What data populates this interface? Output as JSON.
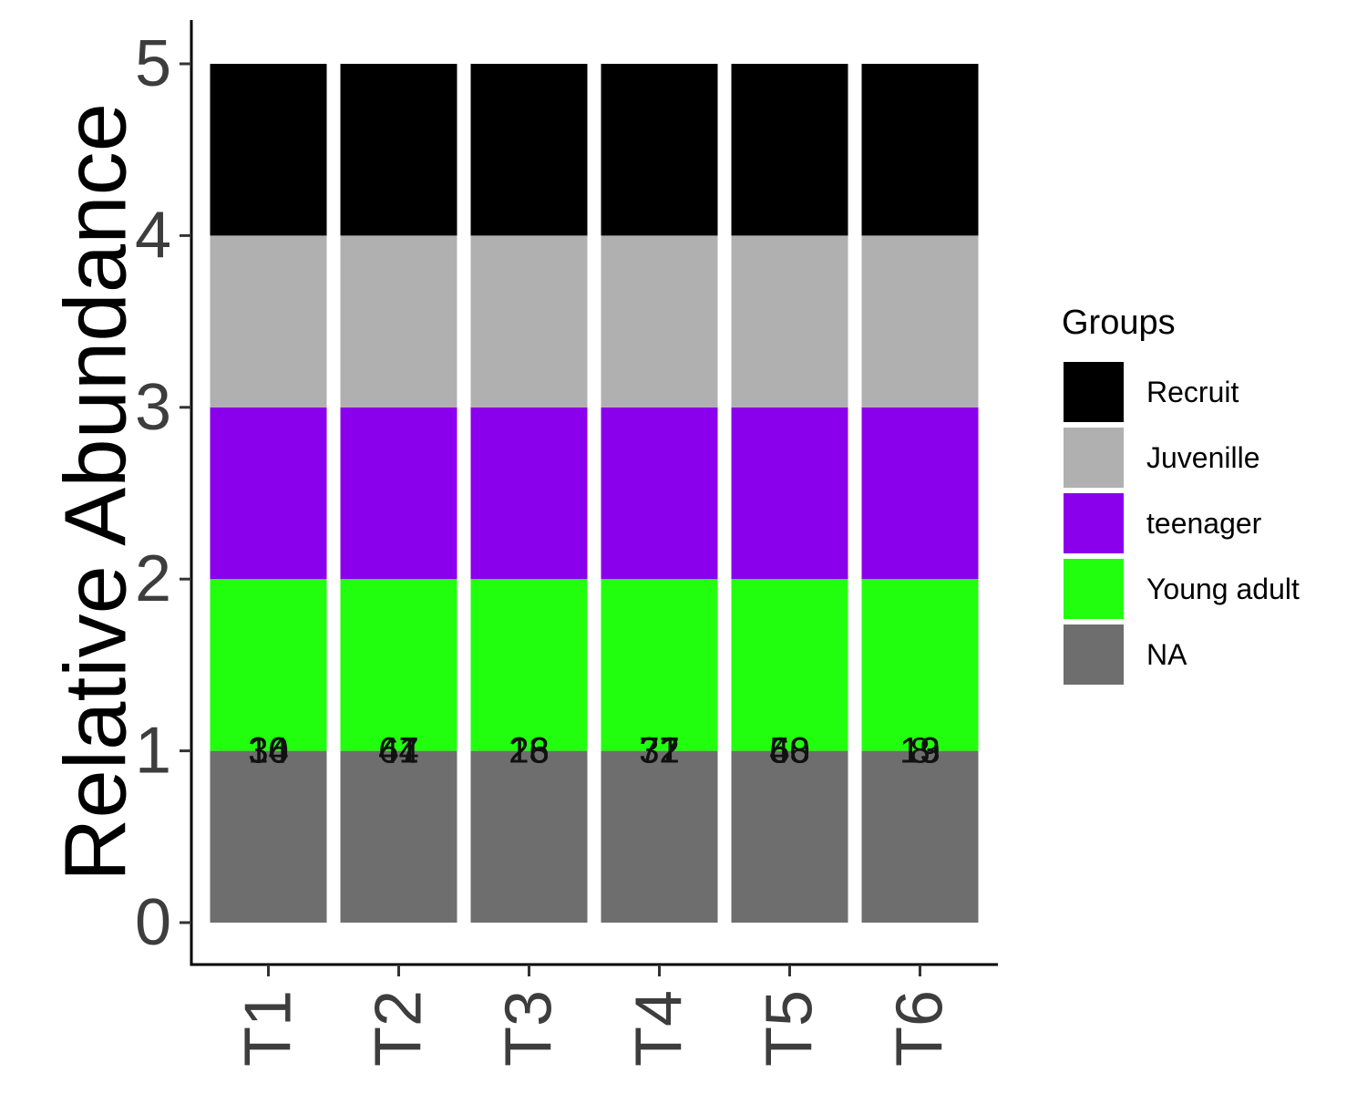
{
  "chart_data": {
    "type": "bar",
    "stacked": true,
    "categories": [
      "T1",
      "T2",
      "T3",
      "T4",
      "T5",
      "T6"
    ],
    "ylabel": "Relative Abundance",
    "xlabel": "",
    "ylim": [
      0,
      5
    ],
    "yticks": [
      "0",
      "1",
      "2",
      "3",
      "4",
      "5"
    ],
    "grid": false,
    "legend": {
      "title": "Groups",
      "position": "right"
    },
    "series": [
      {
        "name": "NA",
        "color": "#6e6e6e",
        "values": [
          1,
          1,
          1,
          1,
          1,
          1
        ]
      },
      {
        "name": "Young adult",
        "color": "#22ff0e",
        "values": [
          1,
          1,
          1,
          1,
          1,
          1
        ]
      },
      {
        "name": "teenager",
        "color": "#8b00ec",
        "values": [
          1,
          1,
          1,
          1,
          1,
          1
        ]
      },
      {
        "name": "Juvenille",
        "color": "#b0b0b0",
        "values": [
          1,
          1,
          1,
          1,
          1,
          1
        ]
      },
      {
        "name": "Recruit",
        "color": "#000000",
        "values": [
          1,
          1,
          1,
          1,
          1,
          1
        ]
      }
    ],
    "legend_order": [
      "Recruit",
      "Juvenille",
      "teenager",
      "Young adult",
      "NA"
    ],
    "bar_labels": [
      {
        "category": "T1",
        "y": 1,
        "text": [
          "34",
          "36",
          "10"
        ]
      },
      {
        "category": "T2",
        "y": 1,
        "text": [
          "41",
          "47",
          "64"
        ]
      },
      {
        "category": "T3",
        "y": 1,
        "text": [
          "26",
          "28",
          "13"
        ]
      },
      {
        "category": "T4",
        "y": 1,
        "text": [
          "37",
          "32",
          "71"
        ]
      },
      {
        "category": "T5",
        "y": 1,
        "text": [
          "40",
          "53",
          "68"
        ]
      },
      {
        "category": "T6",
        "y": 1,
        "text": [
          "19",
          "13",
          "8"
        ]
      }
    ]
  }
}
